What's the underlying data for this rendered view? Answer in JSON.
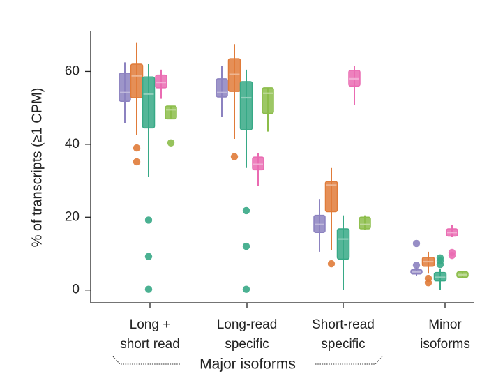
{
  "chart_data": {
    "type": "box",
    "ylabel": "% of transcripts (≥1 CPM)",
    "ylim": [
      -3.5,
      71
    ],
    "yticks": [
      0,
      20,
      40,
      60
    ],
    "categories": [
      {
        "lines": [
          "Long +",
          "short read"
        ]
      },
      {
        "lines": [
          "Long-read",
          "specific"
        ]
      },
      {
        "lines": [
          "Short-read",
          "specific"
        ]
      },
      {
        "lines": [
          "Minor",
          "isoforms"
        ]
      }
    ],
    "group_label": "Major isoforms",
    "series": [
      {
        "color": "#8c82c0",
        "boxes": [
          {
            "lo": 45.8,
            "q1": 51.8,
            "med": 54.2,
            "q3": 59.5,
            "hi": 62.5,
            "outliers": []
          },
          {
            "lo": 47.5,
            "q1": 53.0,
            "med": 54.2,
            "q3": 58.0,
            "hi": 61.5,
            "outliers": []
          },
          {
            "lo": 10.5,
            "q1": 15.8,
            "med": 18.0,
            "q3": 20.5,
            "hi": 25.0,
            "outliers": []
          },
          {
            "lo": 3.8,
            "q1": 4.4,
            "med": 5.0,
            "q3": 5.6,
            "hi": 6.2,
            "outliers": [
              6.8,
              12.8
            ]
          }
        ]
      },
      {
        "color": "#e07b39",
        "boxes": [
          {
            "lo": 42.5,
            "q1": 52.8,
            "med": 58.8,
            "q3": 62.0,
            "hi": 68.0,
            "outliers": [
              39.0,
              35.2
            ]
          },
          {
            "lo": 41.5,
            "q1": 54.5,
            "med": 59.2,
            "q3": 63.5,
            "hi": 67.5,
            "outliers": [
              36.6
            ]
          },
          {
            "lo": 11.0,
            "q1": 21.5,
            "med": 28.8,
            "q3": 29.8,
            "hi": 33.5,
            "outliers": [
              7.2
            ]
          },
          {
            "lo": 4.5,
            "q1": 6.5,
            "med": 7.8,
            "q3": 9.0,
            "hi": 10.5,
            "outliers": [
              3.2,
              2.0
            ]
          }
        ]
      },
      {
        "color": "#37a986",
        "boxes": [
          {
            "lo": 31.0,
            "q1": 44.5,
            "med": 53.8,
            "q3": 58.5,
            "hi": 62.0,
            "outliers": [
              19.2,
              9.2,
              0.2
            ]
          },
          {
            "lo": 33.5,
            "q1": 44.0,
            "med": 52.8,
            "q3": 57.2,
            "hi": 60.5,
            "outliers": [
              21.8,
              12.0,
              0.2
            ]
          },
          {
            "lo": 0.0,
            "q1": 8.5,
            "med": 14.0,
            "q3": 16.8,
            "hi": 20.5,
            "outliers": []
          },
          {
            "lo": 0.0,
            "q1": 2.5,
            "med": 3.5,
            "q3": 4.8,
            "hi": 5.8,
            "outliers": [
              7.0,
              8.0,
              8.8
            ]
          }
        ]
      },
      {
        "color": "#ea6bb2",
        "boxes": [
          {
            "lo": 52.5,
            "q1": 55.5,
            "med": 57.0,
            "q3": 59.0,
            "hi": 60.5,
            "outliers": []
          },
          {
            "lo": 28.5,
            "q1": 33.0,
            "med": 34.5,
            "q3": 36.5,
            "hi": 37.5,
            "outliers": []
          },
          {
            "lo": 50.8,
            "q1": 56.0,
            "med": 58.0,
            "q3": 60.3,
            "hi": 61.5,
            "outliers": []
          },
          {
            "lo": 14.5,
            "q1": 14.8,
            "med": 15.8,
            "q3": 16.8,
            "hi": 17.8,
            "outliers": [
              9.5,
              10.3
            ]
          }
        ]
      },
      {
        "color": "#8cbd4a",
        "boxes": [
          {
            "lo": 47.0,
            "q1": 47.0,
            "med": 49.5,
            "q3": 50.5,
            "hi": 50.5,
            "outliers": [
              40.4
            ]
          },
          {
            "lo": 43.5,
            "q1": 48.5,
            "med": 54.0,
            "q3": 55.5,
            "hi": 55.5,
            "outliers": []
          },
          {
            "lo": 16.5,
            "q1": 16.8,
            "med": 18.0,
            "q3": 20.0,
            "hi": 20.5,
            "outliers": []
          },
          {
            "lo": 3.5,
            "q1": 3.5,
            "med": 4.2,
            "q3": 5.0,
            "hi": 5.0,
            "outliers": []
          }
        ]
      }
    ]
  }
}
